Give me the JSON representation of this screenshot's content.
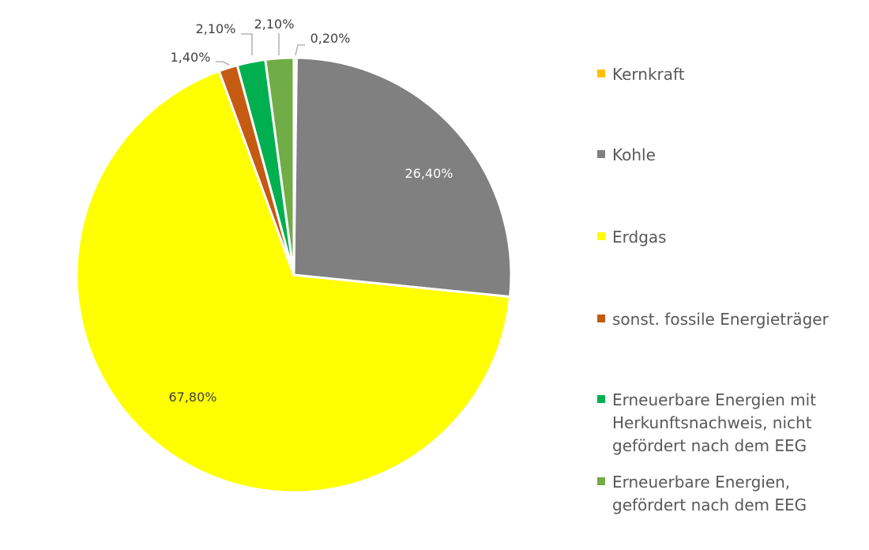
{
  "chart_data": {
    "type": "pie",
    "title": "",
    "categories": [
      "Kernkraft",
      "Kohle",
      "Erdgas",
      "sonst. fossile Energieträger",
      "Erneuerbare Energien mit Herkunftsnachweis, nicht gefördert nach dem EEG",
      "Erneuerbare Energien, gefördert nach dem EEG"
    ],
    "values": [
      0.2,
      26.4,
      67.8,
      1.4,
      2.1,
      2.1
    ],
    "value_labels": [
      "0,20%",
      "26,40%",
      "67,80%",
      "1,40%",
      "2,10%",
      "2,10%"
    ],
    "colors": [
      "#ffc000",
      "#808080",
      "#ffff00",
      "#c55a11",
      "#00b050",
      "#70ad47"
    ],
    "legend_position": "right"
  }
}
